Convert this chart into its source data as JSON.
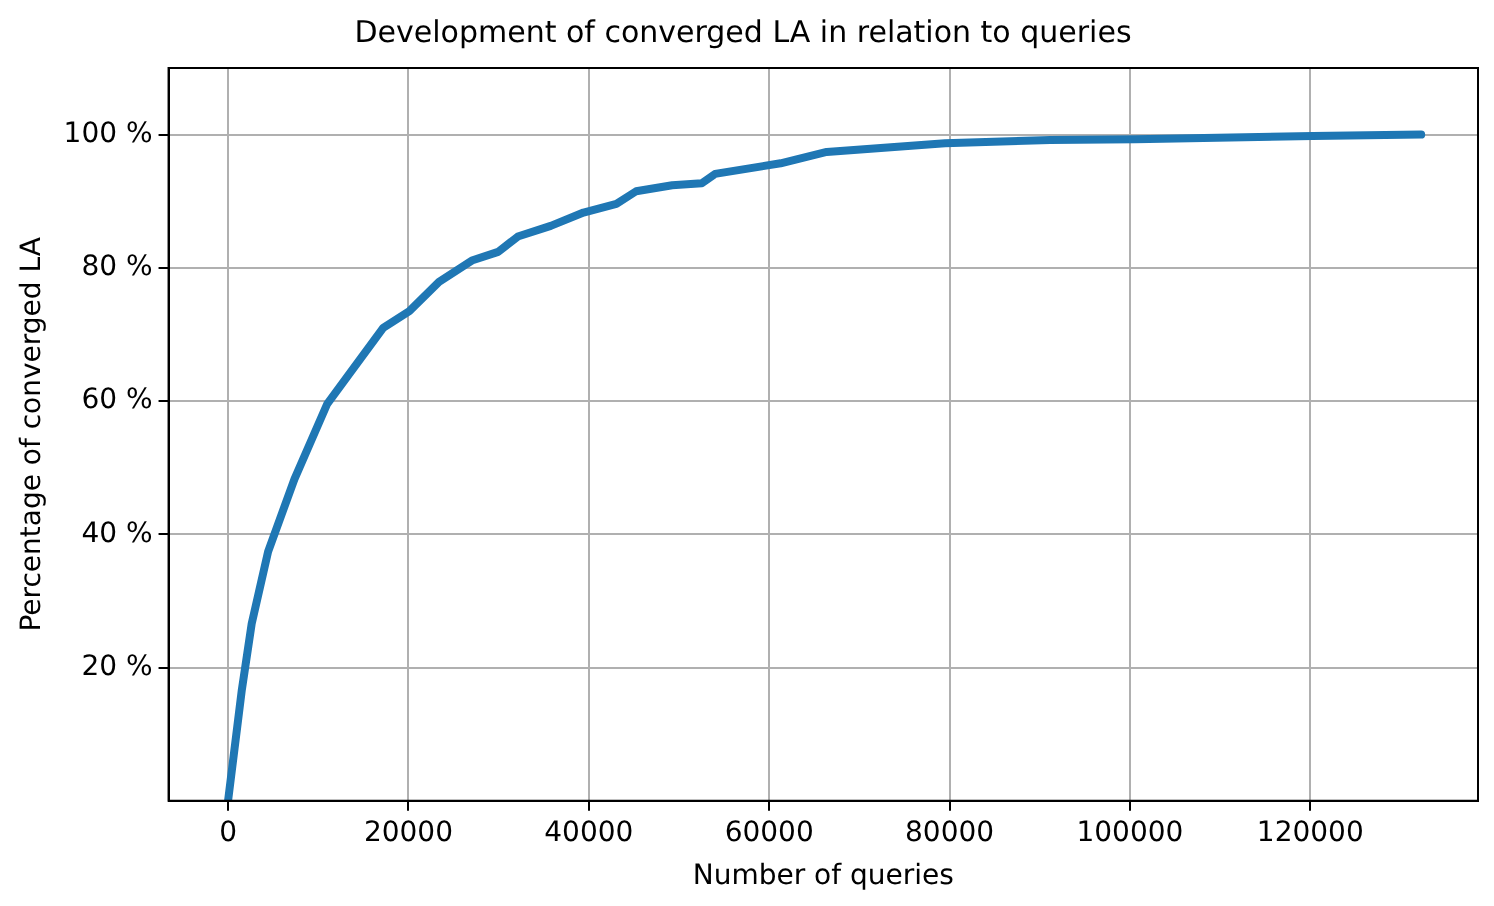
{
  "chart_data": {
    "type": "line",
    "title": "Development of converged LA in relation to queries",
    "xlabel": "Number of queries",
    "ylabel": "Percentage of converged LA",
    "x": [
      0,
      1530,
      2620,
      4440,
      7360,
      11000,
      13180,
      17200,
      20100,
      23390,
      27030,
      29950,
      32130,
      35780,
      39410,
      43060,
      45250,
      49250,
      52530,
      54000,
      61270,
      66380,
      79500,
      91150,
      100600,
      120300,
      132300
    ],
    "series": [
      {
        "color": "#1f77b4",
        "values": [
          0,
          16.7,
          26.6,
          37.4,
          48.3,
          59.6,
          63.6,
          71.0,
          73.5,
          77.9,
          81.1,
          82.4,
          84.7,
          86.3,
          88.3,
          89.6,
          91.5,
          92.4,
          92.7,
          94.1,
          95.7,
          97.4,
          98.7,
          99.2,
          99.3,
          99.8,
          100
        ]
      }
    ],
    "xlim": [
      -6600,
      138600
    ],
    "xticks": [
      0,
      20000,
      40000,
      60000,
      80000,
      100000,
      120000
    ],
    "ylim": [
      0,
      110
    ],
    "yticks": [
      {
        "value": 20,
        "label": "20 %"
      },
      {
        "value": 40,
        "label": "40 %"
      },
      {
        "value": 60,
        "label": "60 %"
      },
      {
        "value": 80,
        "label": "80 %"
      },
      {
        "value": 100,
        "label": "100 %"
      }
    ],
    "grid": true,
    "marker": "none",
    "line_style": "solid",
    "legend": false
  }
}
